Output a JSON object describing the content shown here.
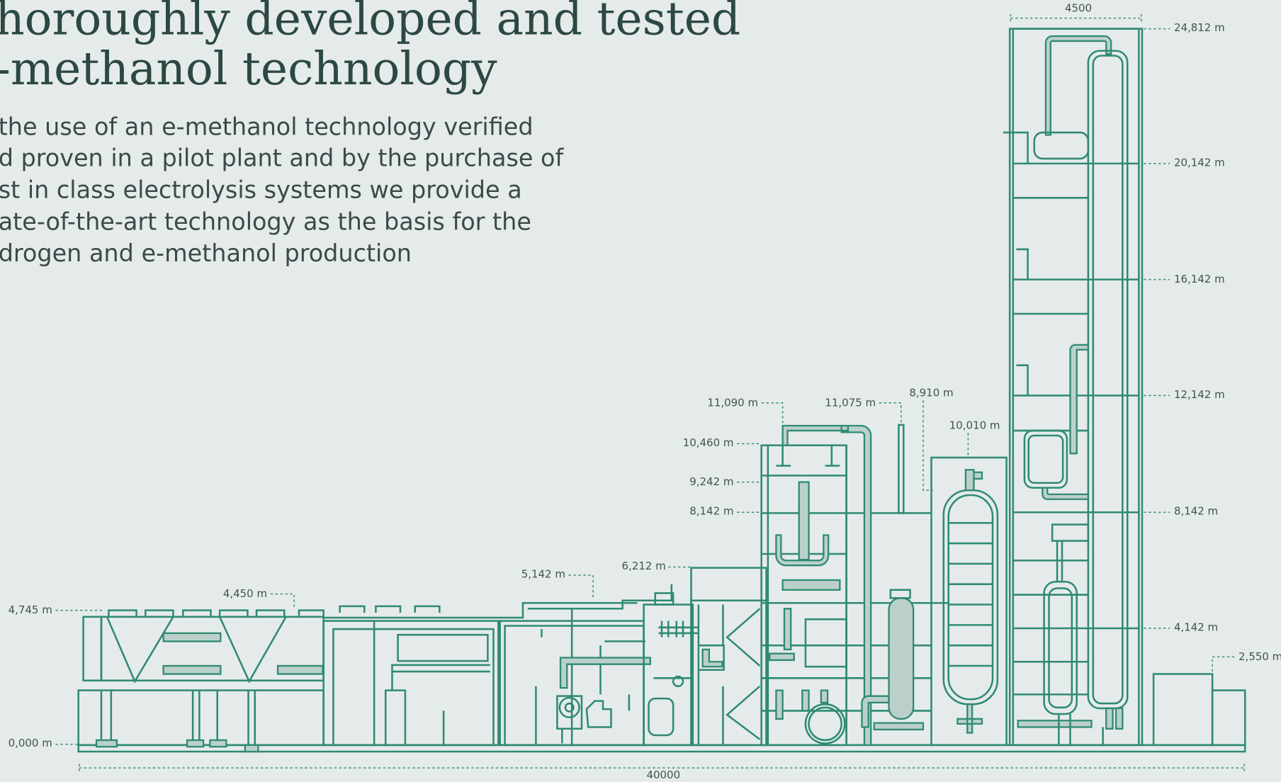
{
  "heading": {
    "lines": [
      "horoughly developed and tested",
      "-methanol technology"
    ]
  },
  "intro": {
    "lines": [
      "the use of an e-methanol technology verified",
      "d proven in a pilot plant and by the purchase of",
      "st in class electrolysis systems we provide a",
      "ate-of-the-art technology as the basis for the",
      "drogen and e-methanol production"
    ]
  },
  "drawing": {
    "labels": [
      "4500",
      "24,812 m",
      "20,142 m",
      "16,142 m",
      "12,142 m",
      "8,142 m",
      "4,142 m",
      "2,550 m",
      "11,090 m",
      "11,075 m",
      "8,910 m",
      "10,010 m",
      "10,460 m",
      "9,242 m",
      "8,142 m",
      "6,212 m",
      "5,142 m",
      "4,450 m",
      "4,745 m",
      "0,000 m",
      "40000"
    ]
  }
}
